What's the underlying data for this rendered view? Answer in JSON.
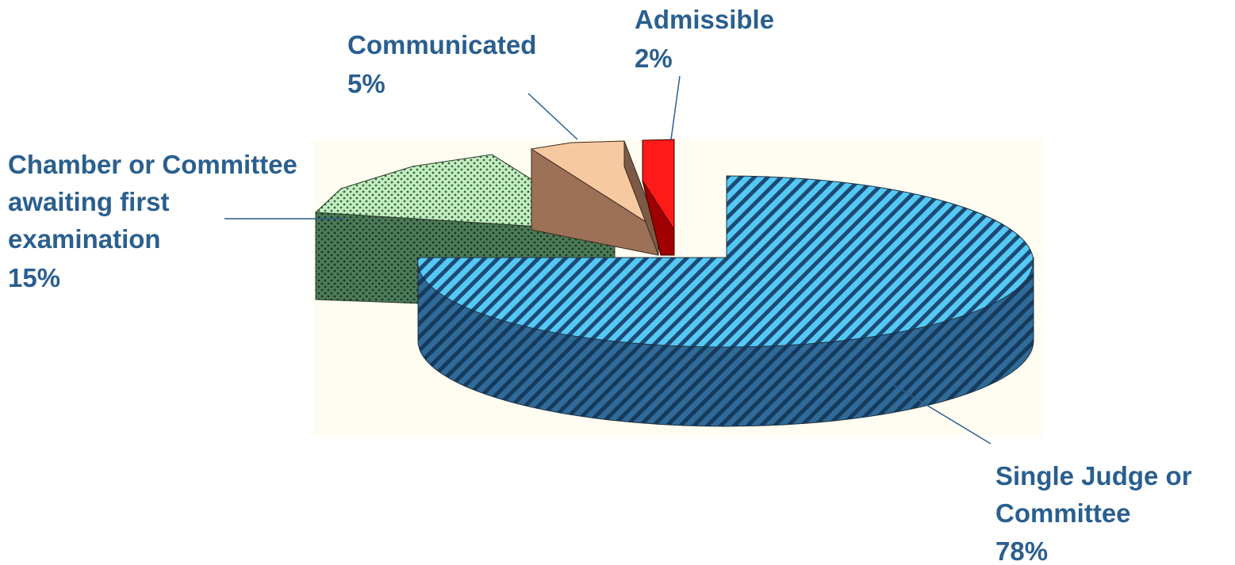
{
  "chart_data": {
    "type": "pie",
    "style": "3d-exploded",
    "title": "",
    "label_color": "#2a5f8f",
    "slices": [
      {
        "key": "single",
        "label_lines": [
          "Single Judge or",
          "Committee"
        ],
        "percent_label": "78%",
        "value": 78,
        "top_color": "#55c8f5",
        "side_color": "#2a5c86",
        "stripe_color": "#1c4a73",
        "pattern": "diagonal-stripes"
      },
      {
        "key": "chamber",
        "label_lines": [
          "Chamber or Committee",
          "awaiting first",
          "examination"
        ],
        "percent_label": "15%",
        "value": 15,
        "top_color": "#c6ecc2",
        "side_color": "#4d7a58",
        "stripe_color": "#1f4a2c",
        "pattern": "dots"
      },
      {
        "key": "communicated",
        "label_lines": [
          "Communicated"
        ],
        "percent_label": "5%",
        "value": 5,
        "top_color": "#f7c9a0",
        "side_color": "#9c7158",
        "stripe_color": "#6b4a36",
        "pattern": "solid"
      },
      {
        "key": "admissible",
        "label_lines": [
          "Admissible"
        ],
        "percent_label": "2%",
        "value": 2,
        "top_color": "#ff1a1a",
        "side_color": "#a00000",
        "stripe_color": "#700000",
        "pattern": "solid"
      }
    ]
  }
}
